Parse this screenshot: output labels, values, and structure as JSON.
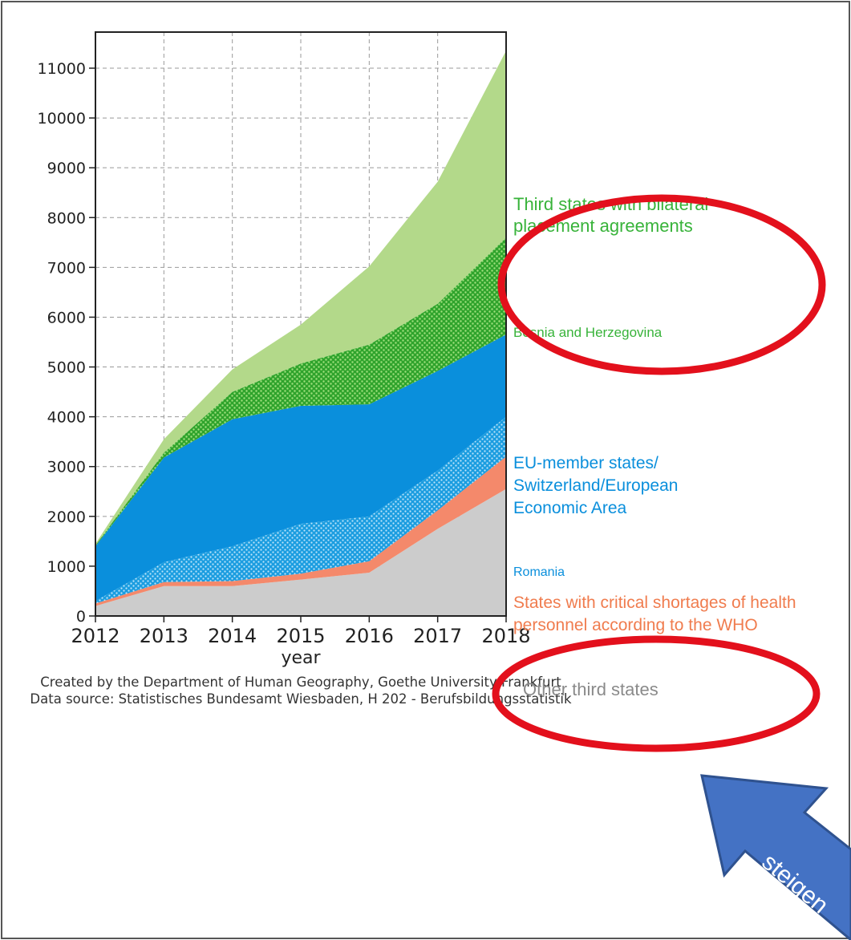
{
  "chart_data": {
    "type": "area",
    "x": [
      2012,
      2013,
      2014,
      2015,
      2016,
      2017,
      2018
    ],
    "xlabel": "year",
    "ylim": [
      0,
      11500
    ],
    "yticks": [
      0,
      1000,
      2000,
      3000,
      4000,
      5000,
      6000,
      7000,
      8000,
      9000,
      10000,
      11000
    ],
    "grid": true,
    "stacking": "stacked",
    "series": [
      {
        "name": "Other third states",
        "color": "#cccccc",
        "values": [
          200,
          600,
          600,
          730,
          870,
          1750,
          2550
        ]
      },
      {
        "name": "States with critical shortages of health personnel according to the WHO",
        "color": "#f4896b",
        "values": [
          50,
          80,
          100,
          120,
          230,
          370,
          650
        ]
      },
      {
        "name": "Romania",
        "color": "#1b9de0",
        "values": [
          50,
          400,
          700,
          1000,
          900,
          800,
          800
        ]
      },
      {
        "name": "EU-member states/ Switzerland/European Economic Area",
        "color": "#0a8fdc",
        "values": [
          1100,
          2100,
          2550,
          2370,
          2250,
          2000,
          1650
        ]
      },
      {
        "name": "Bosnia and Herzegovina",
        "color": "#3fb23a",
        "values": [
          20,
          100,
          550,
          850,
          1200,
          1350,
          1950
        ]
      },
      {
        "name": "Third states with bilateral placement agreements",
        "color": "#b3d98a",
        "values": [
          30,
          270,
          450,
          780,
          1570,
          2450,
          3750
        ]
      }
    ],
    "credits": [
      "Created by the Department of Human Geography, Goethe University Frankfurt",
      "Data source: Statistisches Bundesamt Wiesbaden, H 202 - Berufsbildungsstatistik"
    ]
  },
  "labels": {
    "third_states_line1": "Third states with bilateral",
    "third_states_line2": "placement agreements",
    "bosnia": "Bosnia and Herzegovina",
    "eu_line1": "EU-member states/",
    "eu_line2": "Switzerland/European",
    "eu_line3": "Economic Area",
    "romania": "Romania",
    "critical_line1": "States with critical shortages of health",
    "critical_line2": "personnel according to the WHO",
    "other": "Other third states"
  },
  "annotation": {
    "arrow_text": "steigen",
    "arrow_color": "#4472c4",
    "circle_color": "#e3101c"
  }
}
